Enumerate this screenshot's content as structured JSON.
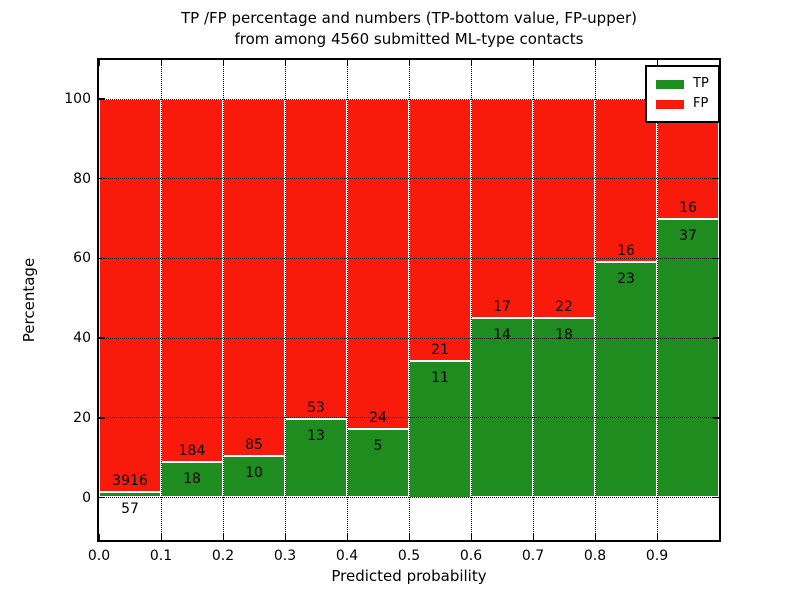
{
  "title_line1": "TP /FP percentage and numbers (TP-bottom value, FP-upper)",
  "title_line2": "from among 4560 submitted ML-type contacts",
  "axes": {
    "xlabel": "Predicted probability",
    "ylabel": "Percentage"
  },
  "legend": {
    "items": [
      {
        "label": "TP",
        "color": "#1e8c1e"
      },
      {
        "label": "FP",
        "color": "#f81b0c"
      }
    ]
  },
  "colors": {
    "tp": "#1e8c1e",
    "fp": "#f81b0c",
    "bar_edge": "#ffffff",
    "grid": "#000000"
  },
  "chart_data": {
    "type": "bar",
    "stacked": true,
    "normalized": "each bar totals 100%",
    "title": "TP /FP percentage and numbers (TP-bottom value, FP-upper) from among 4560 submitted ML-type contacts",
    "xlabel": "Predicted probability",
    "ylabel": "Percentage",
    "categories": [
      "0.0",
      "0.1",
      "0.2",
      "0.3",
      "0.4",
      "0.5",
      "0.6",
      "0.7",
      "0.8",
      "0.9"
    ],
    "bin_width": 0.1,
    "series": [
      {
        "name": "TP",
        "color": "#1e8c1e",
        "counts": [
          57,
          18,
          10,
          13,
          5,
          11,
          14,
          18,
          23,
          37
        ],
        "percent": [
          1.43,
          8.91,
          10.53,
          19.7,
          17.24,
          34.38,
          45.16,
          45.0,
          58.97,
          69.81
        ]
      },
      {
        "name": "FP",
        "color": "#f81b0c",
        "counts": [
          3916,
          184,
          85,
          53,
          24,
          21,
          17,
          22,
          16,
          16
        ],
        "percent": [
          98.57,
          91.09,
          89.47,
          80.3,
          82.76,
          65.62,
          54.84,
          55.0,
          41.03,
          30.19
        ]
      }
    ],
    "total_contacts": 4560,
    "x_ticks": [
      "0.0",
      "0.1",
      "0.2",
      "0.3",
      "0.4",
      "0.5",
      "0.6",
      "0.7",
      "0.8",
      "0.9"
    ],
    "y_ticks": [
      0,
      20,
      40,
      60,
      80,
      100
    ],
    "xlim": [
      0,
      1.0
    ],
    "ylim": [
      -10.5,
      109.5
    ],
    "grid": "dotted black, both axes",
    "legend_position": "upper right"
  }
}
